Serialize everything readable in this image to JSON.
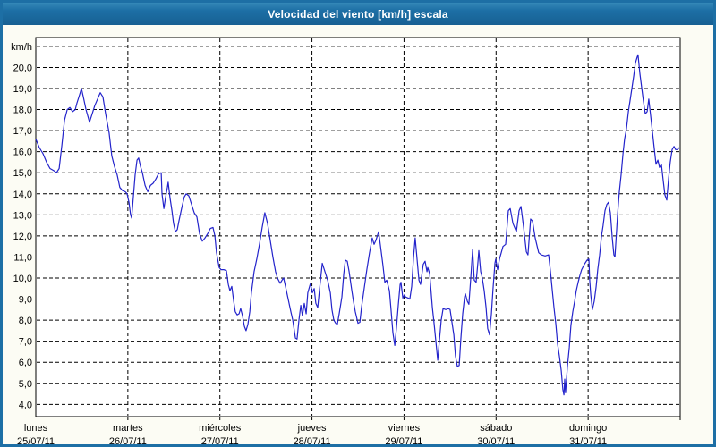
{
  "title_bar": {
    "title": "Velocidad del viento [km/h] escala",
    "bg_color": "#1d6fa5",
    "text_color": "#ffffff"
  },
  "chart_data": {
    "type": "line",
    "title": "Velocidad del viento [km/h] escala",
    "ylabel_unit": "km/h",
    "x_unit": "hours since Monday 25/07/11 00:00",
    "xlim_hours": [
      0,
      168
    ],
    "ylim": [
      3.4,
      21.4
    ],
    "grid": "dashed horizontal every 1 km/h (4 to 21), dashed vertical at each day boundary",
    "legend_position": "none",
    "line_color": "#2323cb",
    "plot_bg": "#ffffff",
    "page_bg": "#fcfcf4",
    "frame_color": "#1d6fa5",
    "y_tick_values": [
      20,
      19,
      18,
      17,
      16,
      15,
      14,
      13,
      12,
      11,
      10,
      9,
      8,
      7,
      6,
      5,
      4
    ],
    "y_tick_labels": [
      "20,0",
      "19,0",
      "18,0",
      "17,0",
      "16,0",
      "15,0",
      "14,0",
      "13,0",
      "12,0",
      "11,0",
      "10,0",
      "9,0",
      "8,0",
      "7,0",
      "6,0",
      "5,0",
      "4,0"
    ],
    "x_days": [
      {
        "name": "lunes",
        "date": "25/07/11"
      },
      {
        "name": "martes",
        "date": "26/07/11"
      },
      {
        "name": "miércoles",
        "date": "27/07/11"
      },
      {
        "name": "jueves",
        "date": "28/07/11"
      },
      {
        "name": "viernes",
        "date": "29/07/11"
      },
      {
        "name": "sábado",
        "date": "30/07/11"
      },
      {
        "name": "domingo",
        "date": "31/07/11"
      }
    ],
    "points": [
      [
        0.0,
        16.6
      ],
      [
        0.9,
        16.2
      ],
      [
        1.9,
        15.9
      ],
      [
        2.8,
        15.5
      ],
      [
        3.7,
        15.2
      ],
      [
        4.7,
        15.1
      ],
      [
        5.4,
        15.0
      ],
      [
        6.1,
        15.2
      ],
      [
        6.8,
        16.3
      ],
      [
        7.5,
        17.5
      ],
      [
        8.2,
        18.0
      ],
      [
        8.9,
        18.1
      ],
      [
        9.6,
        17.9
      ],
      [
        10.3,
        18.0
      ],
      [
        10.7,
        18.3
      ],
      [
        11.4,
        18.7
      ],
      [
        11.9,
        19.0
      ],
      [
        12.4,
        18.6
      ],
      [
        13.1,
        18.0
      ],
      [
        14.0,
        17.4
      ],
      [
        14.7,
        17.8
      ],
      [
        15.4,
        18.2
      ],
      [
        16.1,
        18.5
      ],
      [
        16.8,
        18.8
      ],
      [
        17.5,
        18.6
      ],
      [
        18.2,
        17.8
      ],
      [
        19.1,
        16.9
      ],
      [
        19.8,
        15.8
      ],
      [
        20.5,
        15.3
      ],
      [
        21.2,
        14.9
      ],
      [
        21.9,
        14.3
      ],
      [
        22.6,
        14.15
      ],
      [
        23.3,
        14.1
      ],
      [
        23.8,
        14.0
      ],
      [
        24.3,
        13.6
      ],
      [
        24.7,
        13.0
      ],
      [
        25.0,
        12.85
      ],
      [
        25.4,
        13.8
      ],
      [
        25.9,
        14.9
      ],
      [
        26.4,
        15.6
      ],
      [
        26.8,
        15.7
      ],
      [
        27.3,
        15.3
      ],
      [
        27.8,
        15.0
      ],
      [
        28.5,
        14.4
      ],
      [
        29.2,
        14.1
      ],
      [
        29.9,
        14.4
      ],
      [
        30.6,
        14.5
      ],
      [
        31.3,
        14.7
      ],
      [
        32.0,
        14.95
      ],
      [
        32.7,
        15.0
      ],
      [
        32.9,
        14.0
      ],
      [
        33.4,
        13.3
      ],
      [
        33.8,
        13.8
      ],
      [
        34.3,
        14.3
      ],
      [
        34.5,
        14.55
      ],
      [
        35.0,
        13.8
      ],
      [
        35.5,
        13.2
      ],
      [
        35.9,
        12.6
      ],
      [
        36.4,
        12.2
      ],
      [
        36.9,
        12.3
      ],
      [
        37.3,
        12.7
      ],
      [
        38.0,
        13.3
      ],
      [
        38.7,
        13.85
      ],
      [
        39.2,
        14.0
      ],
      [
        39.9,
        13.9
      ],
      [
        40.6,
        13.5
      ],
      [
        41.3,
        13.1
      ],
      [
        42.0,
        12.9
      ],
      [
        42.7,
        12.1
      ],
      [
        43.4,
        11.75
      ],
      [
        44.1,
        11.9
      ],
      [
        44.8,
        12.1
      ],
      [
        45.5,
        12.35
      ],
      [
        46.2,
        12.4
      ],
      [
        46.7,
        12.0
      ],
      [
        47.1,
        11.2
      ],
      [
        47.8,
        10.5
      ],
      [
        48.3,
        10.4
      ],
      [
        49.0,
        10.4
      ],
      [
        49.7,
        10.35
      ],
      [
        50.2,
        9.7
      ],
      [
        50.6,
        9.4
      ],
      [
        51.1,
        9.6
      ],
      [
        51.6,
        8.9
      ],
      [
        52.0,
        8.4
      ],
      [
        52.5,
        8.25
      ],
      [
        53.0,
        8.3
      ],
      [
        53.4,
        8.55
      ],
      [
        53.9,
        8.2
      ],
      [
        54.4,
        7.7
      ],
      [
        54.8,
        7.5
      ],
      [
        55.3,
        7.8
      ],
      [
        55.8,
        8.4
      ],
      [
        56.2,
        9.3
      ],
      [
        56.9,
        10.3
      ],
      [
        57.6,
        10.9
      ],
      [
        58.3,
        11.6
      ],
      [
        59.0,
        12.4
      ],
      [
        59.7,
        13.1
      ],
      [
        60.4,
        12.6
      ],
      [
        61.1,
        11.8
      ],
      [
        61.8,
        11.0
      ],
      [
        62.5,
        10.3
      ],
      [
        63.0,
        10.0
      ],
      [
        63.7,
        9.75
      ],
      [
        64.2,
        9.9
      ],
      [
        64.6,
        10.0
      ],
      [
        65.1,
        9.6
      ],
      [
        65.8,
        9.0
      ],
      [
        66.5,
        8.4
      ],
      [
        67.0,
        8.0
      ],
      [
        67.7,
        7.15
      ],
      [
        68.1,
        7.1
      ],
      [
        68.6,
        8.0
      ],
      [
        69.1,
        8.7
      ],
      [
        69.5,
        8.2
      ],
      [
        70.0,
        8.8
      ],
      [
        70.5,
        8.3
      ],
      [
        70.9,
        9.3
      ],
      [
        71.6,
        9.75
      ],
      [
        72.1,
        9.3
      ],
      [
        72.6,
        9.5
      ],
      [
        73.0,
        8.8
      ],
      [
        73.5,
        8.6
      ],
      [
        74.0,
        9.5
      ],
      [
        74.7,
        10.7
      ],
      [
        75.4,
        10.3
      ],
      [
        76.1,
        9.9
      ],
      [
        76.8,
        9.3
      ],
      [
        77.2,
        8.5
      ],
      [
        77.7,
        8.0
      ],
      [
        78.2,
        7.85
      ],
      [
        78.6,
        7.8
      ],
      [
        79.1,
        8.3
      ],
      [
        79.8,
        9.1
      ],
      [
        80.3,
        10.2
      ],
      [
        80.7,
        10.85
      ],
      [
        81.2,
        10.8
      ],
      [
        81.7,
        10.3
      ],
      [
        82.4,
        9.4
      ],
      [
        82.8,
        8.9
      ],
      [
        83.3,
        8.4
      ],
      [
        84.0,
        7.85
      ],
      [
        84.5,
        7.9
      ],
      [
        84.9,
        8.6
      ],
      [
        85.6,
        9.5
      ],
      [
        86.3,
        10.4
      ],
      [
        87.0,
        11.2
      ],
      [
        87.7,
        11.9
      ],
      [
        88.2,
        11.6
      ],
      [
        88.7,
        11.8
      ],
      [
        89.4,
        12.2
      ],
      [
        89.8,
        11.6
      ],
      [
        90.5,
        10.6
      ],
      [
        91.0,
        9.8
      ],
      [
        91.5,
        9.9
      ],
      [
        92.2,
        9.4
      ],
      [
        92.6,
        8.5
      ],
      [
        93.1,
        7.4
      ],
      [
        93.6,
        6.8
      ],
      [
        94.0,
        7.6
      ],
      [
        94.5,
        8.7
      ],
      [
        95.0,
        9.7
      ],
      [
        95.2,
        9.8
      ],
      [
        95.7,
        9.05
      ],
      [
        96.1,
        9.2
      ],
      [
        96.4,
        9.1
      ],
      [
        97.1,
        9.05
      ],
      [
        97.5,
        9.0
      ],
      [
        98.0,
        9.6
      ],
      [
        98.5,
        11.0
      ],
      [
        98.9,
        11.9
      ],
      [
        99.4,
        10.9
      ],
      [
        99.9,
        9.9
      ],
      [
        100.3,
        9.7
      ],
      [
        101.0,
        10.65
      ],
      [
        101.5,
        10.8
      ],
      [
        102.0,
        10.3
      ],
      [
        102.2,
        10.5
      ],
      [
        102.7,
        10.2
      ],
      [
        103.4,
        8.6
      ],
      [
        103.8,
        7.9
      ],
      [
        104.3,
        7.0
      ],
      [
        104.8,
        6.1
      ],
      [
        105.2,
        7.0
      ],
      [
        105.7,
        8.0
      ],
      [
        106.2,
        8.55
      ],
      [
        106.9,
        8.5
      ],
      [
        107.6,
        8.55
      ],
      [
        108.0,
        8.5
      ],
      [
        108.5,
        7.9
      ],
      [
        109.0,
        7.3
      ],
      [
        109.4,
        6.3
      ],
      [
        109.9,
        5.8
      ],
      [
        110.4,
        5.85
      ],
      [
        110.8,
        7.1
      ],
      [
        111.3,
        8.3
      ],
      [
        111.8,
        9.1
      ],
      [
        112.0,
        9.25
      ],
      [
        112.5,
        8.9
      ],
      [
        112.9,
        8.75
      ],
      [
        113.4,
        10.0
      ],
      [
        113.9,
        11.35
      ],
      [
        114.3,
        9.9
      ],
      [
        114.8,
        9.8
      ],
      [
        115.3,
        10.8
      ],
      [
        115.5,
        11.3
      ],
      [
        116.0,
        10.3
      ],
      [
        116.4,
        10.0
      ],
      [
        116.9,
        9.4
      ],
      [
        117.4,
        8.6
      ],
      [
        117.8,
        7.6
      ],
      [
        118.3,
        7.3
      ],
      [
        118.8,
        8.3
      ],
      [
        119.2,
        9.5
      ],
      [
        119.7,
        10.7
      ],
      [
        119.9,
        10.9
      ],
      [
        120.4,
        10.4
      ],
      [
        120.9,
        10.9
      ],
      [
        121.8,
        11.5
      ],
      [
        122.5,
        11.6
      ],
      [
        123.2,
        13.2
      ],
      [
        123.7,
        13.3
      ],
      [
        124.4,
        12.6
      ],
      [
        125.3,
        12.2
      ],
      [
        126.0,
        13.2
      ],
      [
        126.5,
        13.4
      ],
      [
        127.2,
        12.4
      ],
      [
        127.9,
        11.25
      ],
      [
        128.3,
        11.1
      ],
      [
        129.0,
        12.8
      ],
      [
        129.5,
        12.7
      ],
      [
        130.2,
        11.9
      ],
      [
        131.1,
        11.2
      ],
      [
        131.8,
        11.1
      ],
      [
        132.8,
        11.05
      ],
      [
        133.7,
        11.1
      ],
      [
        134.2,
        10.3
      ],
      [
        134.6,
        9.5
      ],
      [
        135.1,
        8.6
      ],
      [
        135.6,
        7.8
      ],
      [
        136.0,
        6.9
      ],
      [
        136.5,
        6.3
      ],
      [
        137.0,
        5.6
      ],
      [
        137.4,
        4.7
      ],
      [
        137.7,
        4.45
      ],
      [
        137.9,
        5.2
      ],
      [
        138.1,
        4.55
      ],
      [
        138.6,
        5.8
      ],
      [
        139.1,
        6.7
      ],
      [
        139.5,
        7.75
      ],
      [
        140.0,
        8.4
      ],
      [
        140.5,
        8.9
      ],
      [
        140.9,
        9.4
      ],
      [
        141.4,
        9.8
      ],
      [
        141.9,
        10.15
      ],
      [
        142.3,
        10.4
      ],
      [
        143.0,
        10.65
      ],
      [
        143.7,
        10.85
      ],
      [
        144.2,
        10.9
      ],
      [
        144.4,
        9.9
      ],
      [
        144.7,
        9.2
      ],
      [
        145.1,
        8.5
      ],
      [
        145.6,
        8.9
      ],
      [
        146.1,
        9.6
      ],
      [
        146.5,
        10.4
      ],
      [
        147.0,
        11.1
      ],
      [
        147.5,
        12.0
      ],
      [
        147.9,
        12.5
      ],
      [
        148.4,
        13.2
      ],
      [
        148.9,
        13.5
      ],
      [
        149.3,
        13.6
      ],
      [
        149.8,
        13.1
      ],
      [
        150.3,
        11.9
      ],
      [
        150.7,
        11.1
      ],
      [
        151.0,
        11.0
      ],
      [
        151.7,
        13.05
      ],
      [
        152.1,
        14.05
      ],
      [
        152.6,
        14.9
      ],
      [
        153.1,
        15.9
      ],
      [
        153.5,
        16.6
      ],
      [
        154.0,
        17.1
      ],
      [
        154.5,
        17.9
      ],
      [
        154.9,
        18.4
      ],
      [
        155.4,
        19.0
      ],
      [
        155.9,
        19.6
      ],
      [
        156.3,
        20.2
      ],
      [
        156.8,
        20.5
      ],
      [
        157.0,
        20.6
      ],
      [
        157.5,
        19.7
      ],
      [
        158.0,
        19.0
      ],
      [
        158.4,
        18.4
      ],
      [
        158.9,
        17.8
      ],
      [
        159.4,
        17.9
      ],
      [
        159.8,
        18.5
      ],
      [
        160.3,
        17.7
      ],
      [
        160.8,
        16.9
      ],
      [
        161.2,
        16.2
      ],
      [
        161.7,
        15.4
      ],
      [
        162.2,
        15.6
      ],
      [
        162.6,
        15.25
      ],
      [
        163.1,
        15.4
      ],
      [
        163.6,
        14.6
      ],
      [
        164.0,
        13.95
      ],
      [
        164.5,
        13.7
      ],
      [
        165.0,
        14.75
      ],
      [
        165.4,
        15.5
      ],
      [
        165.9,
        16.1
      ],
      [
        166.4,
        16.25
      ],
      [
        166.8,
        16.1
      ],
      [
        167.3,
        16.1
      ],
      [
        167.8,
        16.2
      ]
    ]
  }
}
